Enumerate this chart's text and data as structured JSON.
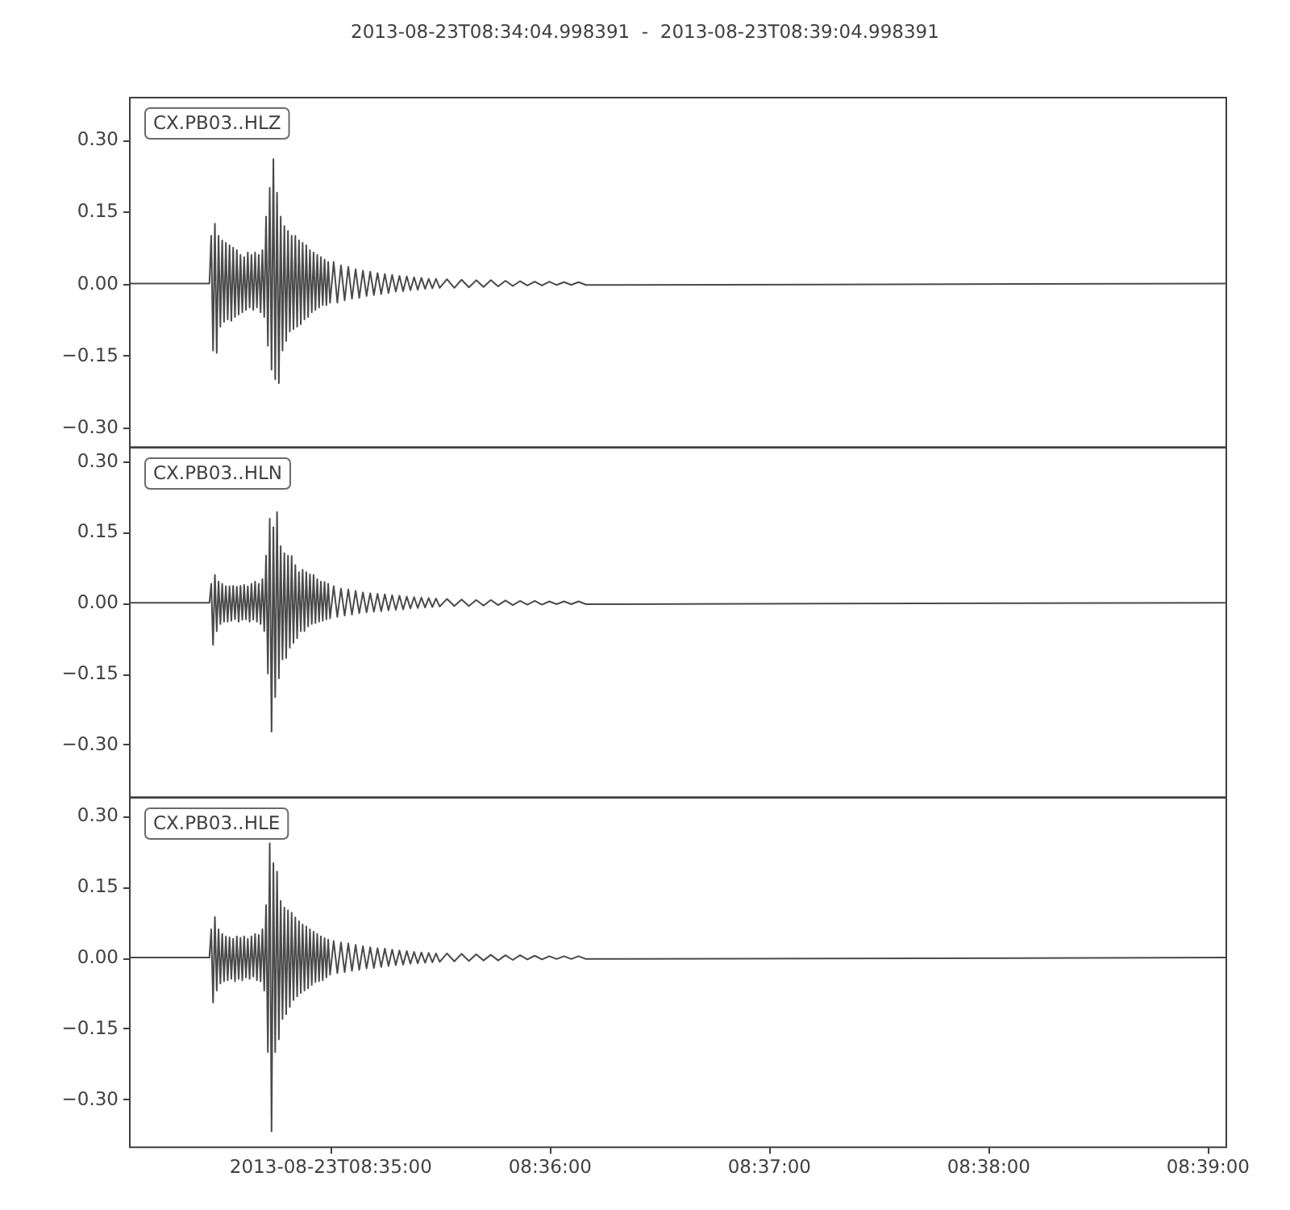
{
  "chart_data": [
    {
      "type": "line",
      "title": "2013-08-23T08:34:04.998391  -  2013-08-23T08:39:04.998391",
      "annotations": [
        "CX.PB03..HLZ"
      ],
      "x": [
        "2013-08-23T08:34:04.998391",
        "2013-08-23T08:34:27.0",
        "2013-08-23T08:34:27.5",
        "2013-08-23T08:34:28.0",
        "2013-08-23T08:34:28.5",
        "2013-08-23T08:34:29.0",
        "2013-08-23T08:34:29.5",
        "2013-08-23T08:34:30.0",
        "2013-08-23T08:34:30.5",
        "2013-08-23T08:34:31.0",
        "2013-08-23T08:34:31.5",
        "2013-08-23T08:34:32.0",
        "2013-08-23T08:34:32.5",
        "2013-08-23T08:34:33.0",
        "2013-08-23T08:34:33.5",
        "2013-08-23T08:34:34.0",
        "2013-08-23T08:34:34.5",
        "2013-08-23T08:34:35.0",
        "2013-08-23T08:34:35.5",
        "2013-08-23T08:34:36.0",
        "2013-08-23T08:34:36.5",
        "2013-08-23T08:34:37.0",
        "2013-08-23T08:34:37.5",
        "2013-08-23T08:34:38.0",
        "2013-08-23T08:34:38.5",
        "2013-08-23T08:34:39.0",
        "2013-08-23T08:34:39.5",
        "2013-08-23T08:34:40.0",
        "2013-08-23T08:34:40.5",
        "2013-08-23T08:34:41.0",
        "2013-08-23T08:34:41.5",
        "2013-08-23T08:34:42.0",
        "2013-08-23T08:34:42.5",
        "2013-08-23T08:34:43.0",
        "2013-08-23T08:34:43.5",
        "2013-08-23T08:34:44.0",
        "2013-08-23T08:34:44.5",
        "2013-08-23T08:34:45.0",
        "2013-08-23T08:34:45.5",
        "2013-08-23T08:34:46.0",
        "2013-08-23T08:34:46.5",
        "2013-08-23T08:34:47.0",
        "2013-08-23T08:34:47.5",
        "2013-08-23T08:34:48.0",
        "2013-08-23T08:34:48.5",
        "2013-08-23T08:34:49.0",
        "2013-08-23T08:34:49.5",
        "2013-08-23T08:34:50.0",
        "2013-08-23T08:34:50.5",
        "2013-08-23T08:34:51.0",
        "2013-08-23T08:34:51.5",
        "2013-08-23T08:34:52.0",
        "2013-08-23T08:34:52.5",
        "2013-08-23T08:34:53.0",
        "2013-08-23T08:34:53.5",
        "2013-08-23T08:34:54.0",
        "2013-08-23T08:34:54.5",
        "2013-08-23T08:34:55.0",
        "2013-08-23T08:34:55.5",
        "2013-08-23T08:34:56.0",
        "2013-08-23T08:34:56.5",
        "2013-08-23T08:34:57.0",
        "2013-08-23T08:34:57.5",
        "2013-08-23T08:34:58.0",
        "2013-08-23T08:34:58.5",
        "2013-08-23T08:34:59.0",
        "2013-08-23T08:34:59.5",
        "2013-08-23T08:35:00.0",
        "2013-08-23T08:35:01",
        "2013-08-23T08:35:02",
        "2013-08-23T08:35:03",
        "2013-08-23T08:35:04",
        "2013-08-23T08:35:05",
        "2013-08-23T08:35:06",
        "2013-08-23T08:35:07",
        "2013-08-23T08:35:08",
        "2013-08-23T08:35:09",
        "2013-08-23T08:35:10",
        "2013-08-23T08:35:11",
        "2013-08-23T08:35:12",
        "2013-08-23T08:35:13",
        "2013-08-23T08:35:14",
        "2013-08-23T08:35:15",
        "2013-08-23T08:35:16",
        "2013-08-23T08:35:17",
        "2013-08-23T08:35:18",
        "2013-08-23T08:35:19",
        "2013-08-23T08:35:20",
        "2013-08-23T08:35:21",
        "2013-08-23T08:35:22",
        "2013-08-23T08:35:23",
        "2013-08-23T08:35:24",
        "2013-08-23T08:35:25",
        "2013-08-23T08:35:26",
        "2013-08-23T08:35:27",
        "2013-08-23T08:35:28",
        "2013-08-23T08:35:29",
        "2013-08-23T08:35:30",
        "2013-08-23T08:35:32",
        "2013-08-23T08:35:34",
        "2013-08-23T08:35:36",
        "2013-08-23T08:35:38",
        "2013-08-23T08:35:40",
        "2013-08-23T08:35:42",
        "2013-08-23T08:35:44",
        "2013-08-23T08:35:46",
        "2013-08-23T08:35:48",
        "2013-08-23T08:35:50",
        "2013-08-23T08:35:52",
        "2013-08-23T08:35:54",
        "2013-08-23T08:35:56",
        "2013-08-23T08:35:58",
        "2013-08-23T08:36:00",
        "2013-08-23T08:36:02",
        "2013-08-23T08:36:04",
        "2013-08-23T08:36:06",
        "2013-08-23T08:36:08",
        "2013-08-23T08:36:10",
        "2013-08-23T08:39:04.998391"
      ],
      "series": [
        {
          "color": "#4a4a4a",
          "values": [
            0,
            0,
            0.1,
            -0.14,
            0.125,
            -0.145,
            0.1,
            -0.09,
            0.09,
            -0.08,
            0.085,
            -0.075,
            0.08,
            -0.078,
            0.075,
            -0.07,
            0.07,
            -0.065,
            0.06,
            -0.06,
            0.055,
            -0.055,
            0.065,
            -0.05,
            0.06,
            -0.055,
            0.065,
            -0.05,
            0.06,
            -0.06,
            0.07,
            -0.07,
            0.14,
            -0.13,
            0.2,
            -0.18,
            0.26,
            -0.2,
            0.19,
            -0.208,
            0.14,
            -0.14,
            0.12,
            -0.12,
            0.11,
            -0.1,
            0.1,
            -0.095,
            0.1,
            -0.09,
            0.09,
            -0.085,
            0.085,
            -0.075,
            0.08,
            -0.07,
            0.07,
            -0.06,
            0.065,
            -0.055,
            0.06,
            -0.05,
            0.055,
            -0.045,
            0.05,
            -0.045,
            0.045,
            -0.04,
            0.045,
            -0.04,
            0.038,
            -0.035,
            0.035,
            -0.032,
            0.03,
            -0.03,
            0.027,
            -0.026,
            0.025,
            -0.024,
            0.022,
            -0.022,
            0.02,
            -0.02,
            0.018,
            -0.017,
            0.016,
            -0.016,
            0.015,
            -0.014,
            0.013,
            -0.013,
            0.012,
            -0.011,
            0.01,
            -0.01,
            0.01,
            -0.009,
            0.009,
            -0.009,
            0.008,
            -0.008,
            0.007,
            -0.007,
            0.007,
            -0.006,
            0.006,
            -0.005,
            0.005,
            -0.004,
            0.004,
            -0.004,
            0.004,
            -0.003,
            0.003,
            -0.003,
            0.003,
            -0.003,
            0
          ]
        }
      ],
      "xlim": [
        "2013-08-23T08:34:04.998391",
        "2013-08-23T08:39:04.998391"
      ],
      "ylim": [
        -0.34,
        0.39
      ],
      "yticks": [
        {
          "value": 0.3,
          "label": "0.30"
        },
        {
          "value": 0.15,
          "label": "0.15"
        },
        {
          "value": 0,
          "label": "0.00"
        },
        {
          "value": -0.15,
          "label": "−0.15"
        },
        {
          "value": -0.3,
          "label": "−0.30"
        }
      ],
      "tick_labels": "y"
    },
    {
      "type": "line",
      "annotations": [
        "CX.PB03..HLN"
      ],
      "x": [
        "2013-08-23T08:34:04.998391",
        "2013-08-23T08:34:27.0",
        "2013-08-23T08:34:27.5",
        "2013-08-23T08:34:28.0",
        "2013-08-23T08:34:28.5",
        "2013-08-23T08:34:29.0",
        "2013-08-23T08:34:29.5",
        "2013-08-23T08:34:30.0",
        "2013-08-23T08:34:30.5",
        "2013-08-23T08:34:31.0",
        "2013-08-23T08:34:31.5",
        "2013-08-23T08:34:32.0",
        "2013-08-23T08:34:32.5",
        "2013-08-23T08:34:33.0",
        "2013-08-23T08:34:33.5",
        "2013-08-23T08:34:34.0",
        "2013-08-23T08:34:34.5",
        "2013-08-23T08:34:35.0",
        "2013-08-23T08:34:35.5",
        "2013-08-23T08:34:36.0",
        "2013-08-23T08:34:36.5",
        "2013-08-23T08:34:37.0",
        "2013-08-23T08:34:37.5",
        "2013-08-23T08:34:38.0",
        "2013-08-23T08:34:38.5",
        "2013-08-23T08:34:39.0",
        "2013-08-23T08:34:39.5",
        "2013-08-23T08:34:40.0",
        "2013-08-23T08:34:40.5",
        "2013-08-23T08:34:41.0",
        "2013-08-23T08:34:41.5",
        "2013-08-23T08:34:42.0",
        "2013-08-23T08:34:42.5",
        "2013-08-23T08:34:43.0",
        "2013-08-23T08:34:43.5",
        "2013-08-23T08:34:44.0",
        "2013-08-23T08:34:44.5",
        "2013-08-23T08:34:45.0",
        "2013-08-23T08:34:45.5",
        "2013-08-23T08:34:46.0",
        "2013-08-23T08:34:46.5",
        "2013-08-23T08:34:47.0",
        "2013-08-23T08:34:47.5",
        "2013-08-23T08:34:48.0",
        "2013-08-23T08:34:48.5",
        "2013-08-23T08:34:49.0",
        "2013-08-23T08:34:49.5",
        "2013-08-23T08:34:50.0",
        "2013-08-23T08:34:50.5",
        "2013-08-23T08:34:51.0",
        "2013-08-23T08:34:51.5",
        "2013-08-23T08:34:52.0",
        "2013-08-23T08:34:52.5",
        "2013-08-23T08:34:53.0",
        "2013-08-23T08:34:53.5",
        "2013-08-23T08:34:54.0",
        "2013-08-23T08:34:54.5",
        "2013-08-23T08:34:55.0",
        "2013-08-23T08:34:55.5",
        "2013-08-23T08:34:56.0",
        "2013-08-23T08:34:56.5",
        "2013-08-23T08:34:57.0",
        "2013-08-23T08:34:57.5",
        "2013-08-23T08:34:58.0",
        "2013-08-23T08:34:58.5",
        "2013-08-23T08:34:59.0",
        "2013-08-23T08:34:59.5",
        "2013-08-23T08:35:00.0",
        "2013-08-23T08:35:01",
        "2013-08-23T08:35:02",
        "2013-08-23T08:35:03",
        "2013-08-23T08:35:04",
        "2013-08-23T08:35:05",
        "2013-08-23T08:35:06",
        "2013-08-23T08:35:07",
        "2013-08-23T08:35:08",
        "2013-08-23T08:35:09",
        "2013-08-23T08:35:10",
        "2013-08-23T08:35:11",
        "2013-08-23T08:35:12",
        "2013-08-23T08:35:13",
        "2013-08-23T08:35:14",
        "2013-08-23T08:35:15",
        "2013-08-23T08:35:16",
        "2013-08-23T08:35:17",
        "2013-08-23T08:35:18",
        "2013-08-23T08:35:19",
        "2013-08-23T08:35:20",
        "2013-08-23T08:35:21",
        "2013-08-23T08:35:22",
        "2013-08-23T08:35:23",
        "2013-08-23T08:35:24",
        "2013-08-23T08:35:25",
        "2013-08-23T08:35:26",
        "2013-08-23T08:35:27",
        "2013-08-23T08:35:28",
        "2013-08-23T08:35:29",
        "2013-08-23T08:35:30",
        "2013-08-23T08:35:32",
        "2013-08-23T08:35:34",
        "2013-08-23T08:35:36",
        "2013-08-23T08:35:38",
        "2013-08-23T08:35:40",
        "2013-08-23T08:35:42",
        "2013-08-23T08:35:44",
        "2013-08-23T08:35:46",
        "2013-08-23T08:35:48",
        "2013-08-23T08:35:50",
        "2013-08-23T08:35:52",
        "2013-08-23T08:35:54",
        "2013-08-23T08:35:56",
        "2013-08-23T08:35:58",
        "2013-08-23T08:36:00",
        "2013-08-23T08:36:02",
        "2013-08-23T08:36:04",
        "2013-08-23T08:36:06",
        "2013-08-23T08:36:08",
        "2013-08-23T08:36:10",
        "2013-08-23T08:39:04.998391"
      ],
      "series": [
        {
          "color": "#4a4a4a",
          "values": [
            0,
            0,
            0.04,
            -0.089,
            0.059,
            -0.06,
            0.045,
            -0.045,
            0.04,
            -0.04,
            0.035,
            -0.04,
            0.035,
            -0.038,
            0.036,
            -0.035,
            0.034,
            -0.04,
            0.036,
            -0.036,
            0.038,
            -0.035,
            0.035,
            -0.04,
            0.04,
            -0.036,
            0.045,
            -0.04,
            0.04,
            -0.045,
            0.05,
            -0.06,
            0.1,
            -0.15,
            0.178,
            -0.273,
            0.16,
            -0.2,
            0.192,
            -0.16,
            0.12,
            -0.12,
            0.105,
            -0.117,
            0.1,
            -0.095,
            0.099,
            -0.085,
            0.08,
            -0.075,
            0.065,
            -0.06,
            0.07,
            -0.06,
            0.065,
            -0.05,
            0.06,
            -0.045,
            0.059,
            -0.043,
            0.05,
            -0.04,
            0.045,
            -0.038,
            0.044,
            -0.035,
            0.04,
            -0.033,
            0.035,
            -0.03,
            0.03,
            -0.027,
            0.028,
            -0.025,
            0.025,
            -0.022,
            0.022,
            -0.02,
            0.02,
            -0.019,
            0.019,
            -0.018,
            0.018,
            -0.016,
            0.016,
            -0.015,
            0.015,
            -0.014,
            0.013,
            -0.012,
            0.012,
            -0.011,
            0.011,
            -0.01,
            0.01,
            -0.009,
            0.009,
            -0.008,
            0.008,
            -0.007,
            0.007,
            -0.007,
            0.006,
            -0.006,
            0.006,
            -0.005,
            0.005,
            -0.005,
            0.004,
            -0.004,
            0.004,
            -0.004,
            0.003,
            -0.003,
            0.003,
            -0.003,
            0.003,
            -0.003,
            0
          ]
        }
      ],
      "xlim": [
        "2013-08-23T08:34:04.998391",
        "2013-08-23T08:39:04.998391"
      ],
      "ylim": [
        -0.41,
        0.33
      ],
      "yticks": [
        {
          "value": 0.3,
          "label": "0.30"
        },
        {
          "value": 0.15,
          "label": "0.15"
        },
        {
          "value": 0,
          "label": "0.00"
        },
        {
          "value": -0.15,
          "label": "−0.15"
        },
        {
          "value": -0.3,
          "label": "−0.30"
        }
      ],
      "tick_labels": "y"
    },
    {
      "type": "line",
      "annotations": [
        "CX.PB03..HLE"
      ],
      "x": [
        "2013-08-23T08:34:04.998391",
        "2013-08-23T08:34:27.0",
        "2013-08-23T08:34:27.5",
        "2013-08-23T08:34:28.0",
        "2013-08-23T08:34:28.5",
        "2013-08-23T08:34:29.0",
        "2013-08-23T08:34:29.5",
        "2013-08-23T08:34:30.0",
        "2013-08-23T08:34:30.5",
        "2013-08-23T08:34:31.0",
        "2013-08-23T08:34:31.5",
        "2013-08-23T08:34:32.0",
        "2013-08-23T08:34:32.5",
        "2013-08-23T08:34:33.0",
        "2013-08-23T08:34:33.5",
        "2013-08-23T08:34:34.0",
        "2013-08-23T08:34:34.5",
        "2013-08-23T08:34:35.0",
        "2013-08-23T08:34:35.5",
        "2013-08-23T08:34:36.0",
        "2013-08-23T08:34:36.5",
        "2013-08-23T08:34:37.0",
        "2013-08-23T08:34:37.5",
        "2013-08-23T08:34:38.0",
        "2013-08-23T08:34:38.5",
        "2013-08-23T08:34:39.0",
        "2013-08-23T08:34:39.5",
        "2013-08-23T08:34:40.0",
        "2013-08-23T08:34:40.5",
        "2013-08-23T08:34:41.0",
        "2013-08-23T08:34:41.5",
        "2013-08-23T08:34:42.0",
        "2013-08-23T08:34:42.5",
        "2013-08-23T08:34:43.0",
        "2013-08-23T08:34:43.5",
        "2013-08-23T08:34:44.0",
        "2013-08-23T08:34:44.5",
        "2013-08-23T08:34:45.0",
        "2013-08-23T08:34:45.5",
        "2013-08-23T08:34:46.0",
        "2013-08-23T08:34:46.5",
        "2013-08-23T08:34:47.0",
        "2013-08-23T08:34:47.5",
        "2013-08-23T08:34:48.0",
        "2013-08-23T08:34:48.5",
        "2013-08-23T08:34:49.0",
        "2013-08-23T08:34:49.5",
        "2013-08-23T08:34:50.0",
        "2013-08-23T08:34:50.5",
        "2013-08-23T08:34:51.0",
        "2013-08-23T08:34:51.5",
        "2013-08-23T08:34:52.0",
        "2013-08-23T08:34:52.5",
        "2013-08-23T08:34:53.0",
        "2013-08-23T08:34:53.5",
        "2013-08-23T08:34:54.0",
        "2013-08-23T08:34:54.5",
        "2013-08-23T08:34:55.0",
        "2013-08-23T08:34:55.5",
        "2013-08-23T08:34:56.0",
        "2013-08-23T08:34:56.5",
        "2013-08-23T08:34:57.0",
        "2013-08-23T08:34:57.5",
        "2013-08-23T08:34:58.0",
        "2013-08-23T08:34:58.5",
        "2013-08-23T08:34:59.0",
        "2013-08-23T08:34:59.5",
        "2013-08-23T08:35:00.0",
        "2013-08-23T08:35:01",
        "2013-08-23T08:35:02",
        "2013-08-23T08:35:03",
        "2013-08-23T08:35:04",
        "2013-08-23T08:35:05",
        "2013-08-23T08:35:06",
        "2013-08-23T08:35:07",
        "2013-08-23T08:35:08",
        "2013-08-23T08:35:09",
        "2013-08-23T08:35:10",
        "2013-08-23T08:35:11",
        "2013-08-23T08:35:12",
        "2013-08-23T08:35:13",
        "2013-08-23T08:35:14",
        "2013-08-23T08:35:15",
        "2013-08-23T08:35:16",
        "2013-08-23T08:35:17",
        "2013-08-23T08:35:18",
        "2013-08-23T08:35:19",
        "2013-08-23T08:35:20",
        "2013-08-23T08:35:21",
        "2013-08-23T08:35:22",
        "2013-08-23T08:35:23",
        "2013-08-23T08:35:24",
        "2013-08-23T08:35:25",
        "2013-08-23T08:35:26",
        "2013-08-23T08:35:27",
        "2013-08-23T08:35:28",
        "2013-08-23T08:35:29",
        "2013-08-23T08:35:30",
        "2013-08-23T08:35:32",
        "2013-08-23T08:35:34",
        "2013-08-23T08:35:36",
        "2013-08-23T08:35:38",
        "2013-08-23T08:35:40",
        "2013-08-23T08:35:42",
        "2013-08-23T08:35:44",
        "2013-08-23T08:35:46",
        "2013-08-23T08:35:48",
        "2013-08-23T08:35:50",
        "2013-08-23T08:35:52",
        "2013-08-23T08:35:54",
        "2013-08-23T08:35:56",
        "2013-08-23T08:35:58",
        "2013-08-23T08:36:00",
        "2013-08-23T08:36:02",
        "2013-08-23T08:36:04",
        "2013-08-23T08:36:06",
        "2013-08-23T08:36:08",
        "2013-08-23T08:36:10",
        "2013-08-23T08:39:04.998391"
      ],
      "series": [
        {
          "color": "#4a4a4a",
          "values": [
            0,
            0,
            0.06,
            -0.095,
            0.086,
            -0.07,
            0.06,
            -0.055,
            0.05,
            -0.05,
            0.045,
            -0.048,
            0.043,
            -0.045,
            0.04,
            -0.05,
            0.045,
            -0.045,
            0.042,
            -0.048,
            0.045,
            -0.042,
            0.04,
            -0.045,
            0.045,
            -0.04,
            0.05,
            -0.048,
            0.048,
            -0.05,
            0.06,
            -0.07,
            0.111,
            -0.2,
            0.242,
            -0.368,
            0.2,
            -0.2,
            0.182,
            -0.173,
            0.12,
            -0.13,
            0.106,
            -0.12,
            0.1,
            -0.105,
            0.095,
            -0.09,
            0.085,
            -0.082,
            0.077,
            -0.075,
            0.07,
            -0.07,
            0.066,
            -0.065,
            0.06,
            -0.058,
            0.055,
            -0.052,
            0.05,
            -0.05,
            0.045,
            -0.048,
            0.041,
            -0.042,
            0.038,
            -0.036,
            0.035,
            -0.033,
            0.032,
            -0.031,
            0.03,
            -0.028,
            0.027,
            -0.026,
            0.024,
            -0.023,
            0.022,
            -0.022,
            0.02,
            -0.02,
            0.019,
            -0.018,
            0.017,
            -0.016,
            0.015,
            -0.015,
            0.014,
            -0.013,
            0.012,
            -0.012,
            0.011,
            -0.011,
            0.01,
            -0.01,
            0.009,
            -0.009,
            0.009,
            -0.008,
            0.008,
            -0.007,
            0.007,
            -0.006,
            0.006,
            -0.006,
            0.005,
            -0.005,
            0.005,
            -0.004,
            0.004,
            -0.004,
            0.003,
            -0.003,
            0.003,
            -0.003,
            0.003,
            -0.003,
            0
          ]
        }
      ],
      "xlim": [
        "2013-08-23T08:34:04.998391",
        "2013-08-23T08:39:04.998391"
      ],
      "ylim": [
        -0.4,
        0.34
      ],
      "xticks": [
        {
          "value": "2013-08-23T08:35:00",
          "label": "2013-08-23T08:35:00"
        },
        {
          "value": "2013-08-23T08:36:00",
          "label": "08:36:00"
        },
        {
          "value": "2013-08-23T08:37:00",
          "label": "08:37:00"
        },
        {
          "value": "2013-08-23T08:38:00",
          "label": "08:38:00"
        },
        {
          "value": "2013-08-23T08:39:00",
          "label": "08:39:00"
        }
      ],
      "yticks": [
        {
          "value": 0.3,
          "label": "0.30"
        },
        {
          "value": 0.15,
          "label": "0.15"
        },
        {
          "value": 0,
          "label": "0.00"
        },
        {
          "value": -0.15,
          "label": "−0.15"
        },
        {
          "value": -0.3,
          "label": "−0.30"
        }
      ]
    }
  ]
}
